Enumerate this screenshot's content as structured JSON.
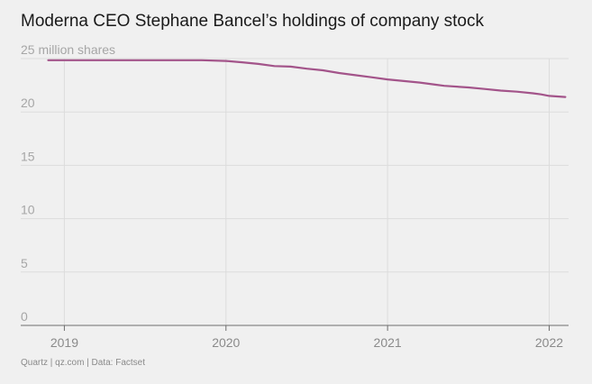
{
  "title": "Moderna CEO Stephane Bancel’s holdings of company stock",
  "source": "Quartz | qz.com | Data: Factset",
  "colors": {
    "background": "#f0f0f0",
    "line": "#a3548a",
    "grid": "#dcdcdc",
    "axis": "#6e6e6e"
  },
  "chart_data": {
    "type": "line",
    "title": "Moderna CEO Stephane Bancel’s holdings of company stock",
    "ylabel": "million shares",
    "y_ticks": [
      {
        "value": 0,
        "label": "0"
      },
      {
        "value": 5,
        "label": "5"
      },
      {
        "value": 10,
        "label": "10"
      },
      {
        "value": 15,
        "label": "15"
      },
      {
        "value": 20,
        "label": "20"
      },
      {
        "value": 25,
        "label": "25 million shares"
      }
    ],
    "x_ticks": [
      {
        "value": 2019,
        "label": "2019"
      },
      {
        "value": 2020,
        "label": "2020"
      },
      {
        "value": 2021,
        "label": "2021"
      },
      {
        "value": 2022,
        "label": "2022"
      }
    ],
    "xlim": [
      2018.73,
      2022.12
    ],
    "ylim": [
      0,
      25
    ],
    "grid": "horizontal and year gridlines",
    "series": [
      {
        "x": [
          2018.9,
          2019.0,
          2019.25,
          2019.5,
          2019.75,
          2019.85,
          2020.0,
          2020.1,
          2020.2,
          2020.3,
          2020.4,
          2020.5,
          2020.6,
          2020.7,
          2020.8,
          2020.9,
          2021.0,
          2021.1,
          2021.2,
          2021.3,
          2021.35,
          2021.5,
          2021.6,
          2021.7,
          2021.8,
          2021.9,
          2021.95,
          2022.0,
          2022.1
        ],
        "y": [
          24.85,
          24.85,
          24.85,
          24.85,
          24.85,
          24.85,
          24.78,
          24.65,
          24.5,
          24.3,
          24.25,
          24.05,
          23.9,
          23.65,
          23.45,
          23.25,
          23.05,
          22.9,
          22.75,
          22.55,
          22.45,
          22.3,
          22.15,
          22.0,
          21.9,
          21.75,
          21.65,
          21.5,
          21.4
        ]
      }
    ]
  }
}
